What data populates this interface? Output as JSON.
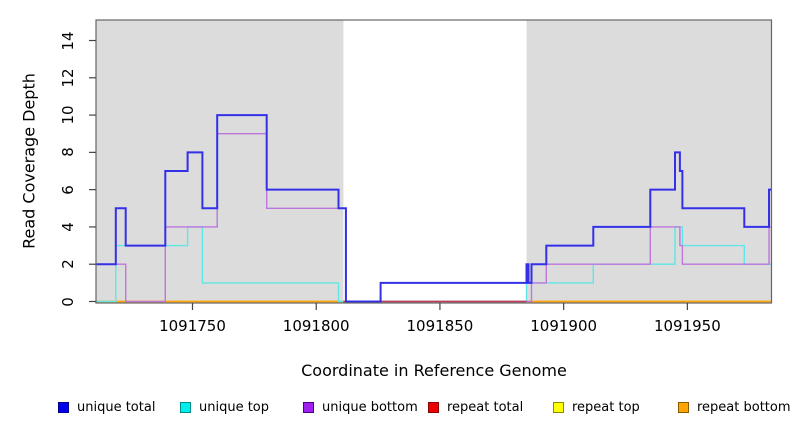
{
  "figure": {
    "x_axis_label": "Coordinate in Reference Genome",
    "y_axis_label": "Read Coverage Depth"
  },
  "legend": [
    {
      "label": "unique total",
      "fill": "#0000EE",
      "border": "#00008B"
    },
    {
      "label": "unique top",
      "fill": "#00EEEE",
      "border": "#008B8B"
    },
    {
      "label": "unique bottom",
      "fill": "#A020F0",
      "border": "#4B0082"
    },
    {
      "label": "repeat total",
      "fill": "#EE0000",
      "border": "#8B0000"
    },
    {
      "label": "repeat top",
      "fill": "#FFFF00",
      "border": "#8B8B00"
    },
    {
      "label": "repeat bottom",
      "fill": "#FFA500",
      "border": "#8B5A00"
    }
  ],
  "chart_data": {
    "type": "line",
    "step": true,
    "title": "",
    "xlabel": "Coordinate in Reference Genome",
    "ylabel": "Read Coverage Depth",
    "xlim": [
      1091711,
      1091984
    ],
    "ylim": [
      0,
      15.1
    ],
    "x_ticks": [
      1091750,
      1091800,
      1091850,
      1091900,
      1091950
    ],
    "y_ticks": [
      0,
      2,
      4,
      6,
      8,
      10,
      12,
      14
    ],
    "grid": false,
    "legend_position": "bottom",
    "shade_color": "#DCDCDC",
    "axis_color": "#666666",
    "shaded_regions": [
      {
        "from": 1091711,
        "to": 1091811
      },
      {
        "from": 1091885,
        "to": 1091984
      }
    ],
    "series": [
      {
        "name": "repeat top",
        "color": "#FFFF00",
        "width": 1.4,
        "points": [
          [
            1091711,
            0
          ]
        ],
        "x_end": 1091984
      },
      {
        "name": "repeat bottom",
        "color": "#FFA114",
        "width": 1.8,
        "points": [
          [
            1091711,
            0
          ]
        ],
        "x_end": 1091984
      },
      {
        "name": "unique top",
        "color": "#5FE6E6",
        "width": 1.4,
        "points": [
          [
            1091711,
            0
          ],
          [
            1091719,
            3
          ],
          [
            1091748,
            4
          ],
          [
            1091754,
            1
          ],
          [
            1091809,
            0
          ],
          [
            1091885,
            1
          ],
          [
            1091912,
            2
          ],
          [
            1091945,
            4
          ],
          [
            1091948,
            3
          ],
          [
            1091973,
            2
          ]
        ],
        "x_end": 1091984
      },
      {
        "name": "unique bottom",
        "color": "#BD76DE",
        "width": 1.4,
        "points": [
          [
            1091711,
            2
          ],
          [
            1091723,
            0
          ],
          [
            1091739,
            4
          ],
          [
            1091760,
            9
          ],
          [
            1091780,
            5
          ],
          [
            1091812,
            0
          ],
          [
            1091887,
            1
          ],
          [
            1091893,
            2
          ],
          [
            1091935,
            4
          ],
          [
            1091947,
            3
          ],
          [
            1091948,
            2
          ],
          [
            1091983,
            4
          ]
        ],
        "x_end": 1091984
      },
      {
        "name": "repeat total",
        "color": "#C23A55",
        "width": 1.4,
        "points": [
          [
            1091811,
            0
          ]
        ],
        "x_end": 1091885
      },
      {
        "name": "unique total",
        "color": "#3330E8",
        "width": 2,
        "points": [
          [
            1091711,
            2
          ],
          [
            1091719,
            5
          ],
          [
            1091723,
            3
          ],
          [
            1091739,
            7
          ],
          [
            1091748,
            8
          ],
          [
            1091754,
            5
          ],
          [
            1091760,
            10
          ],
          [
            1091780,
            6
          ],
          [
            1091809,
            5
          ],
          [
            1091812,
            0
          ],
          [
            1091826,
            1
          ],
          [
            1091885,
            2
          ],
          [
            1091885.8,
            1
          ],
          [
            1091887,
            2
          ],
          [
            1091893,
            3
          ],
          [
            1091912,
            4
          ],
          [
            1091935,
            6
          ],
          [
            1091945,
            8
          ],
          [
            1091947,
            7
          ],
          [
            1091948,
            5
          ],
          [
            1091973,
            4
          ],
          [
            1091983,
            6
          ]
        ],
        "x_end": 1091984
      }
    ]
  }
}
